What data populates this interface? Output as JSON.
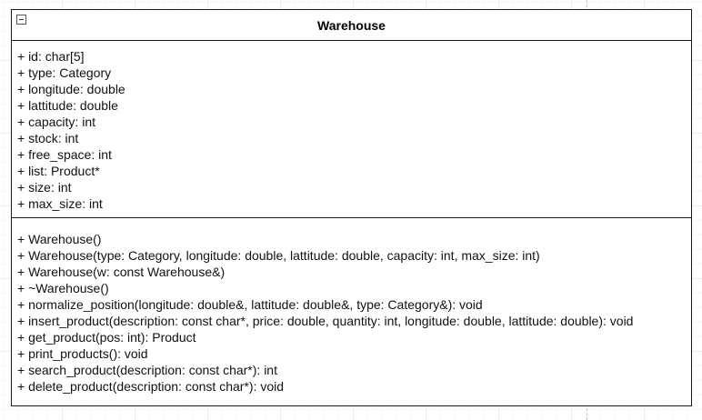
{
  "class": {
    "name": "Warehouse",
    "attributes": [
      "+ id: char[5]",
      "+ type: Category",
      "+ longitude: double",
      "+ lattitude: double",
      "+ capacity: int",
      "+ stock: int",
      "+ free_space: int",
      "+ list: Product*",
      "+ size: int",
      "+ max_size: int"
    ],
    "operations": [
      "+ Warehouse()",
      "+ Warehouse(type: Category, longitude: double, lattitude: double, capacity: int, max_size: int)",
      "+ Warehouse(w: const Warehouse&)",
      "+ ~Warehouse()",
      "+ normalize_position(longitude: double&, lattitude: double&, type: Category&): void",
      "+ insert_product(description: const char*, price: double, quantity: int, longitude: double, lattitude: double): void",
      "+ get_product(pos: int): Product",
      "+ print_products(): void",
      "+ search_product(description: const char*): int",
      "+ delete_product(description: const char*): void"
    ]
  }
}
